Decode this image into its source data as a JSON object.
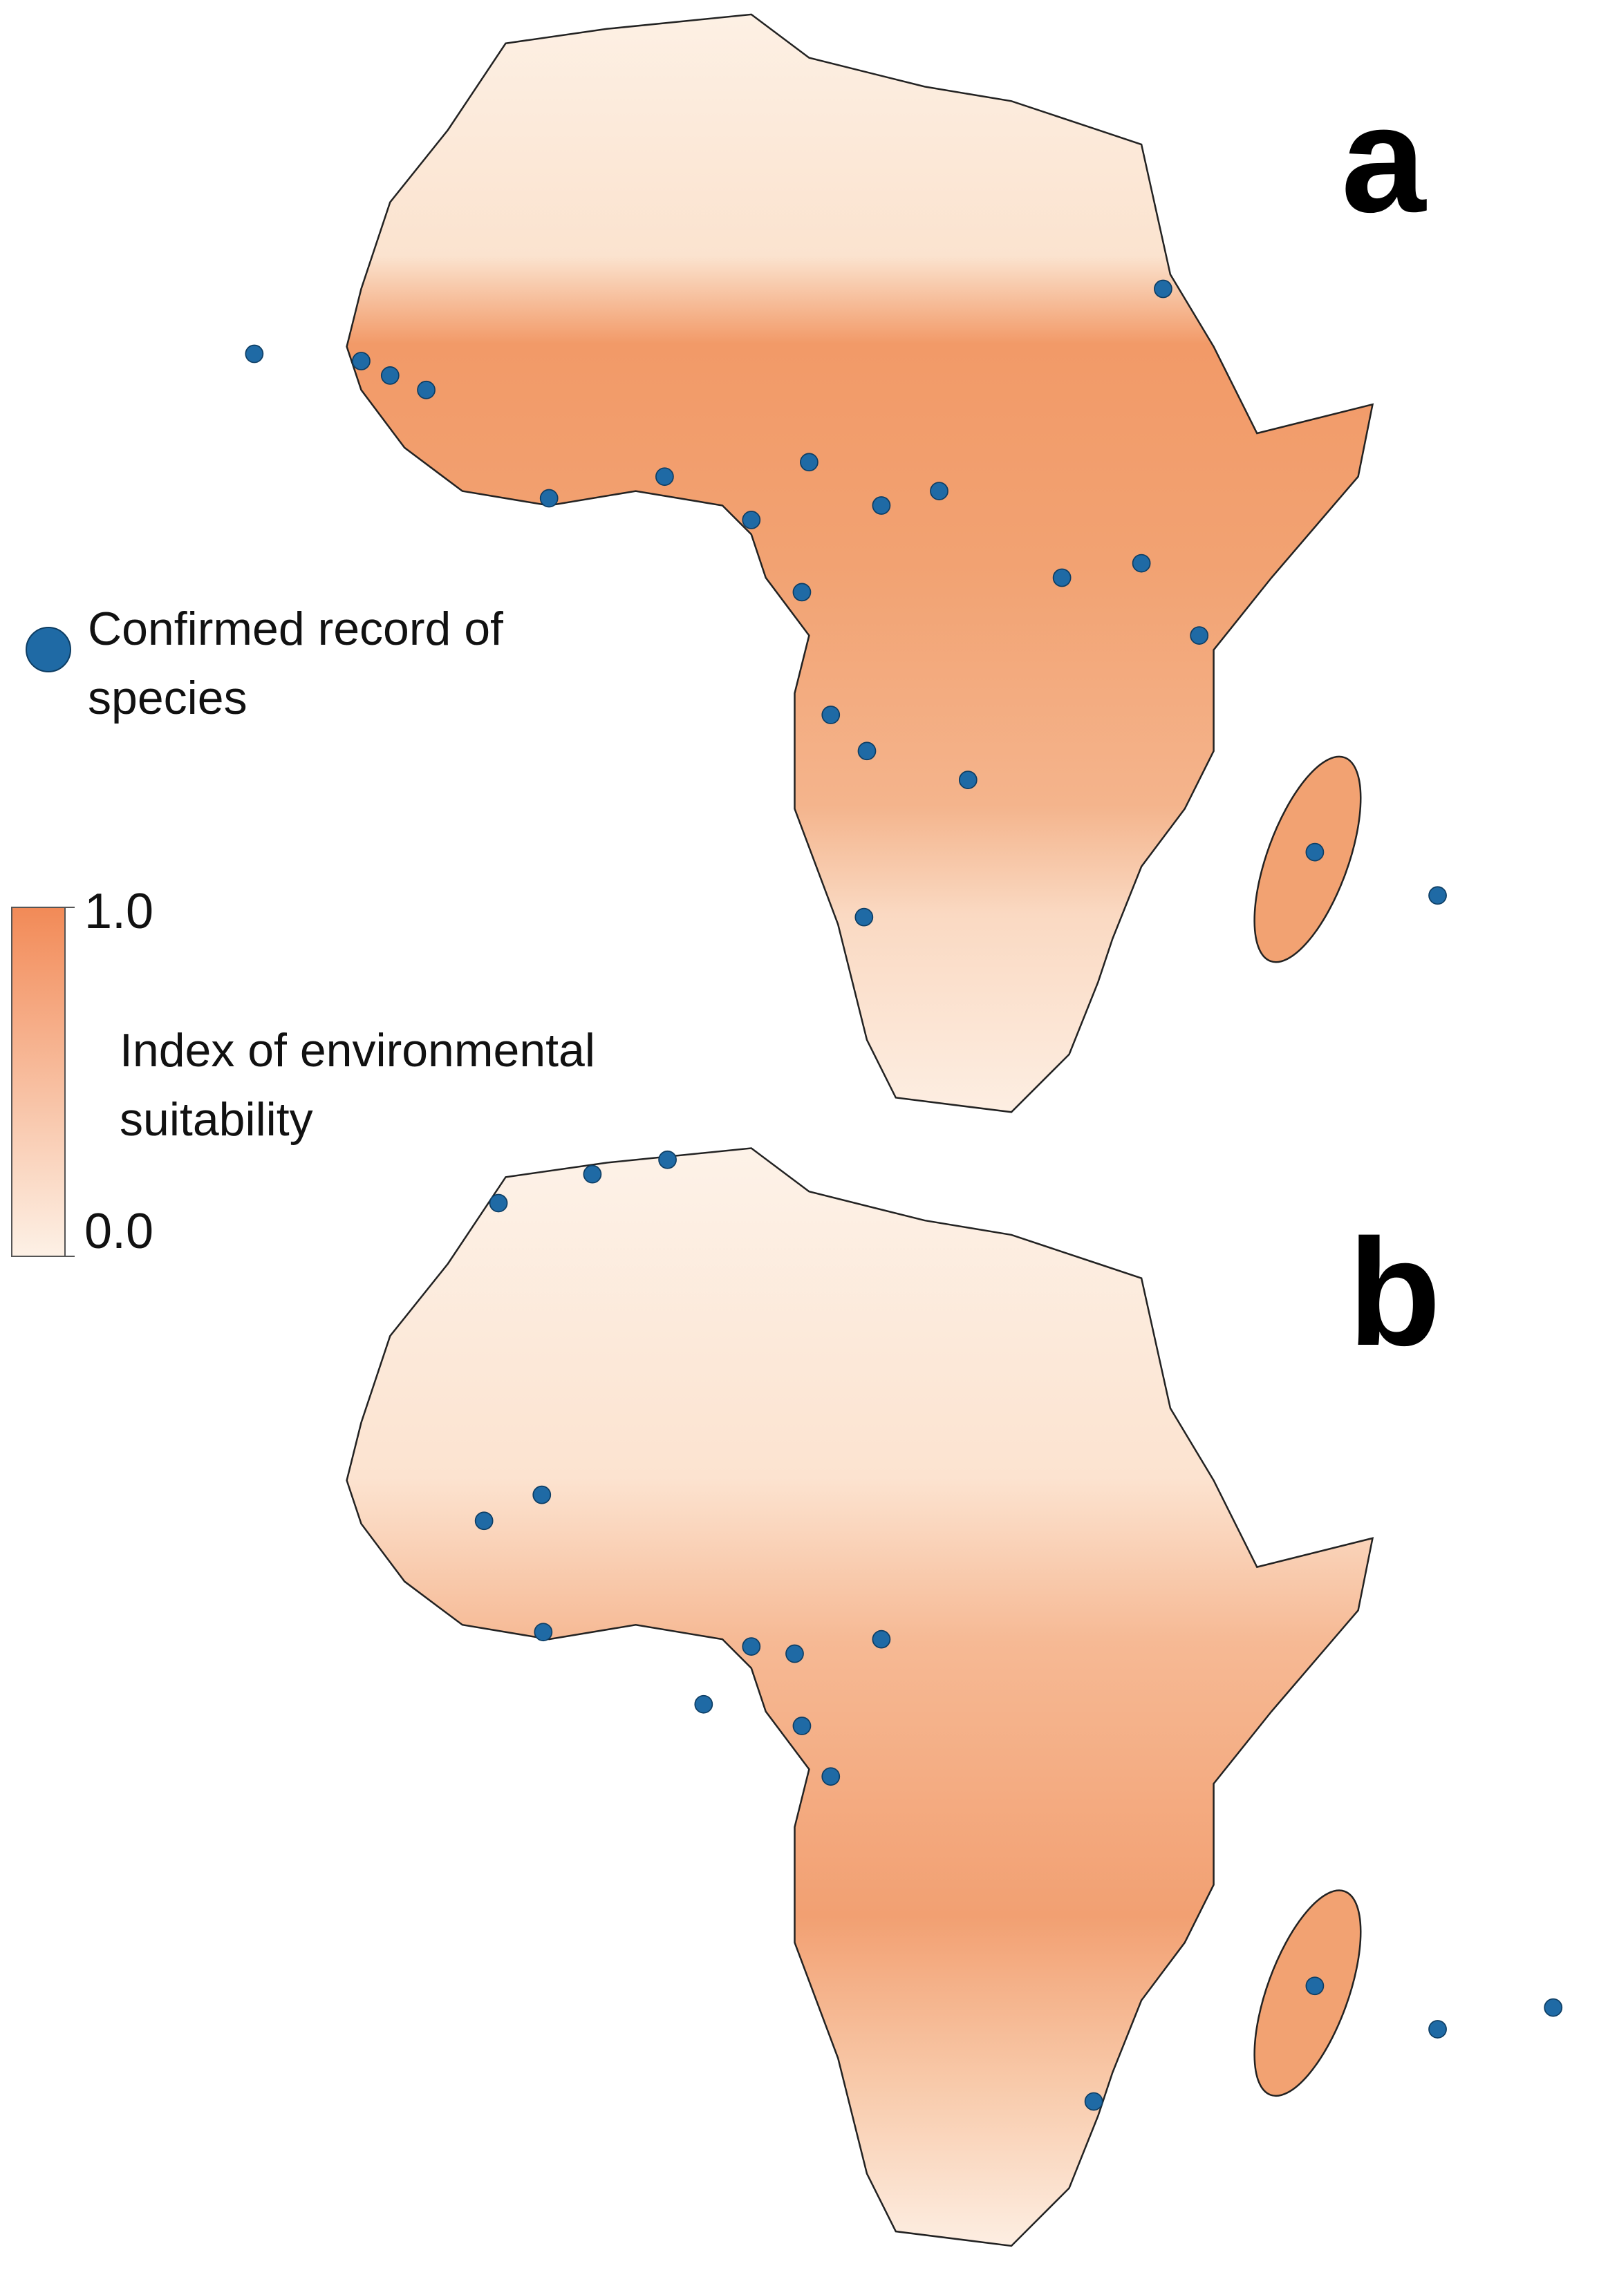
{
  "panels": [
    {
      "label": "a"
    },
    {
      "label": "b"
    }
  ],
  "legend": {
    "marker_label": "Confirmed record of species",
    "marker_color": "#1f6aa5"
  },
  "colorbar": {
    "title": "Index of environmental suitability",
    "range": [
      0,
      1
    ],
    "ticks": [
      {
        "value": 0,
        "label": "0.0"
      },
      {
        "value": 1,
        "label": "1.0"
      }
    ],
    "colors": [
      "#fdf1e6",
      "#f28a57"
    ]
  }
}
